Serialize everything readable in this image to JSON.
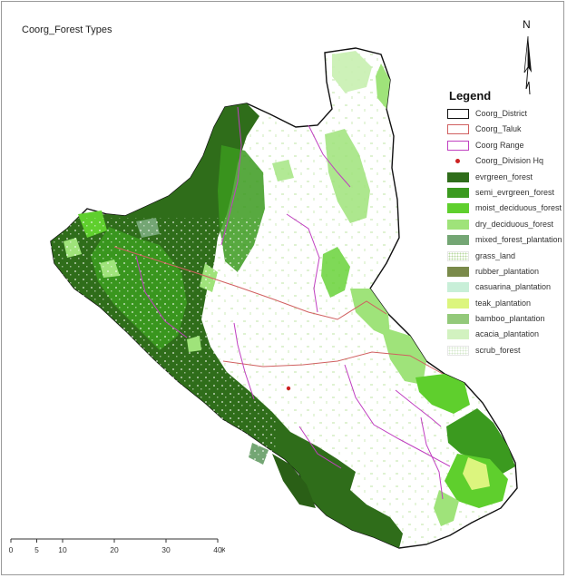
{
  "map": {
    "title": "Coorg_Forest Types",
    "north_label": "N",
    "legend": {
      "title": "Legend",
      "items": [
        {
          "label": "Coorg_District",
          "kind": "line",
          "color": "#111111"
        },
        {
          "label": "Coorg_Taluk",
          "kind": "line",
          "color": "#d06060"
        },
        {
          "label": "Coorg Range",
          "kind": "line",
          "color": "#c040c0"
        },
        {
          "label": "Coorg_Division Hq",
          "kind": "dot",
          "color": "#cc2222"
        },
        {
          "label": "evrgreen_forest",
          "kind": "fill",
          "color": "#2f6d1a"
        },
        {
          "label": "semi_evrgreen_forest",
          "kind": "fill",
          "color": "#3b9a1f"
        },
        {
          "label": "moist_deciduous_forest",
          "kind": "fill",
          "color": "#5fcf2d"
        },
        {
          "label": "dry_deciduous_forest",
          "kind": "fill",
          "color": "#9fe37a"
        },
        {
          "label": "mixed_forest_plantation",
          "kind": "fill",
          "color": "#74a674"
        },
        {
          "label": "grass_land",
          "kind": "dots",
          "color": "#b8d8a0"
        },
        {
          "label": "rubber_plantation",
          "kind": "fill",
          "color": "#7a8a4a"
        },
        {
          "label": "casuarina_plantation",
          "kind": "fill",
          "color": "#c8efd8"
        },
        {
          "label": "teak_plantation",
          "kind": "fill",
          "color": "#dcf57e"
        },
        {
          "label": "bamboo_plantation",
          "kind": "fill",
          "color": "#93c97a"
        },
        {
          "label": "acacia_plantation",
          "kind": "fill",
          "color": "#d2f2c0"
        },
        {
          "label": "scrub_forest",
          "kind": "dots",
          "color": "#d6e8cc"
        }
      ]
    },
    "scale": {
      "ticks": [
        "0",
        "5",
        "10",
        "20",
        "30",
        "40"
      ],
      "unit": "Km",
      "tick_values": [
        0,
        5,
        10,
        20,
        30,
        40
      ]
    }
  }
}
